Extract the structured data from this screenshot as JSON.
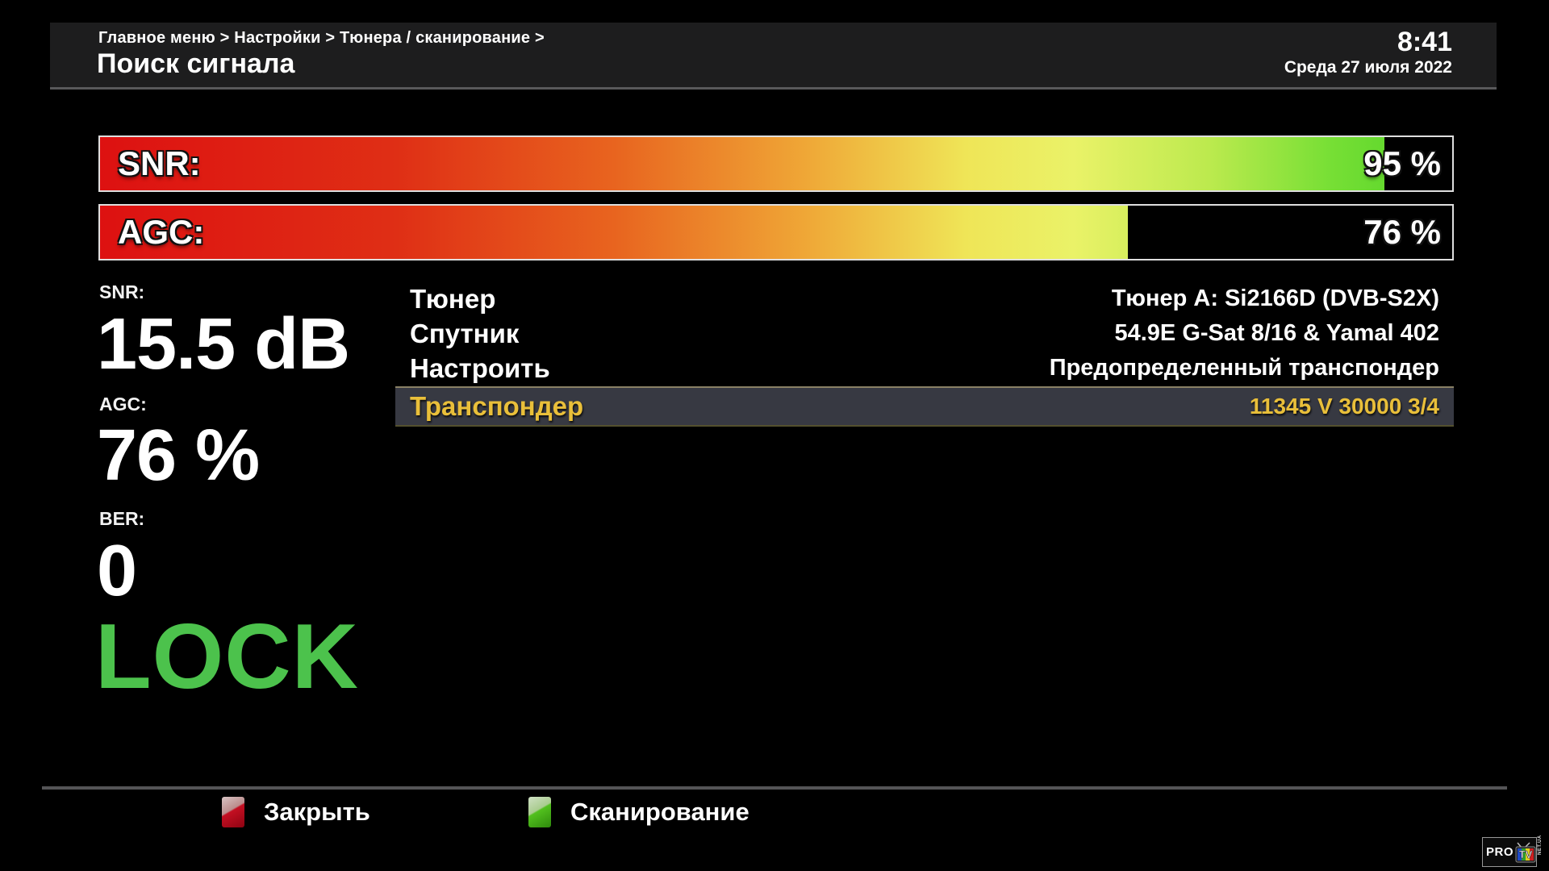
{
  "header": {
    "breadcrumb": "Главное меню > Настройки > Тюнера / сканирование >",
    "title": "Поиск сигнала",
    "time": "8:41",
    "date": "Среда 27 июля 2022"
  },
  "bars": [
    {
      "id": "snr",
      "label": "SNR:",
      "percent": 95,
      "display": "95 %"
    },
    {
      "id": "agc",
      "label": "AGC:",
      "percent": 76,
      "display": "76 %"
    }
  ],
  "signal": {
    "snr_label": "SNR:",
    "snr_value": "15.5 dB",
    "agc_label": "AGC:",
    "agc_value": "76 %",
    "ber_label": "BER:",
    "ber_value": "0",
    "lock_status": "LOCK"
  },
  "settings": {
    "rows": [
      {
        "label": "Тюнер",
        "value": "Тюнер A: Si2166D (DVB-S2X)",
        "selected": false
      },
      {
        "label": "Спутник",
        "value": "54.9E G-Sat 8/16 & Yamal 402",
        "selected": false
      },
      {
        "label": "Настроить",
        "value": "Предопределенный транспондер",
        "selected": false
      },
      {
        "label": "Транспондер",
        "value": "11345 V 30000 3/4",
        "selected": true
      }
    ]
  },
  "footer": {
    "buttons": [
      {
        "key": "red",
        "label": "Закрыть"
      },
      {
        "key": "green",
        "label": "Сканирование"
      }
    ]
  },
  "logo": {
    "pro": "PRO",
    "tv": "TV",
    "suffix": "NET.UA"
  },
  "colors": {
    "lock_green": "#4cc24c",
    "selected_yellow": "#e9bf3a",
    "bar_gradient_start": "#dd1111",
    "bar_gradient_mid": "#eaf268",
    "bar_gradient_end": "#4ed226",
    "red_key": "#c40f22",
    "green_key": "#52c01e",
    "header_bg": "#1d1d1e"
  }
}
